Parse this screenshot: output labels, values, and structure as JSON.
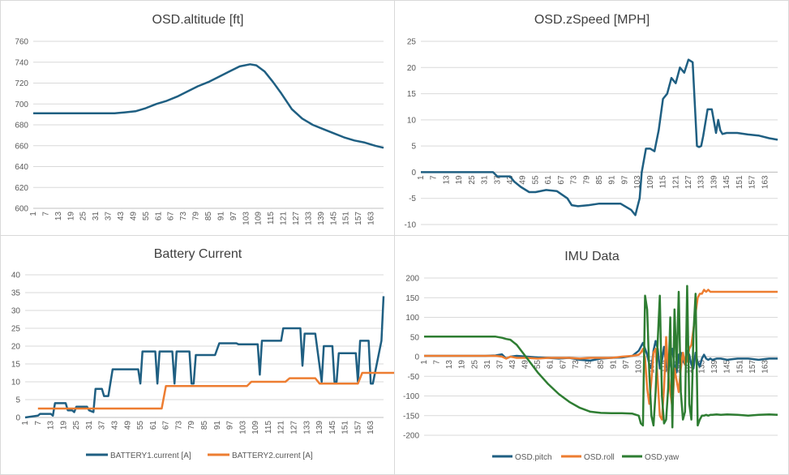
{
  "colors": {
    "blue": "#1f5f82",
    "orange": "#ed7d31",
    "green": "#2e7d32",
    "grid": "#d9d9d9",
    "text": "#595959"
  },
  "x_tick_labels": [
    "1",
    "7",
    "13",
    "19",
    "25",
    "31",
    "37",
    "43",
    "49",
    "55",
    "61",
    "67",
    "73",
    "79",
    "85",
    "91",
    "97",
    "103",
    "109",
    "115",
    "121",
    "127",
    "133",
    "139",
    "145",
    "151",
    "157",
    "163"
  ],
  "chart_data": [
    {
      "id": "altitude",
      "type": "line",
      "title": "OSD.altitude [ft]",
      "ylim": [
        600,
        760
      ],
      "yticks": [
        600,
        620,
        640,
        660,
        680,
        700,
        720,
        740,
        760
      ],
      "x": [
        1,
        10,
        20,
        30,
        40,
        45,
        50,
        55,
        60,
        65,
        70,
        75,
        80,
        85,
        90,
        95,
        100,
        105,
        108,
        112,
        116,
        120,
        125,
        130,
        135,
        140,
        145,
        150,
        155,
        160,
        165,
        169
      ],
      "series": [
        {
          "name": "OSD.altitude [ft]",
          "color": "#1f5f82",
          "values": [
            691,
            691,
            691,
            691,
            691,
            692,
            693,
            696,
            700,
            703,
            707,
            712,
            717,
            721,
            726,
            731,
            736,
            738,
            737,
            731,
            721,
            710,
            695,
            686,
            680,
            676,
            672,
            668,
            665,
            663,
            660,
            658
          ]
        }
      ]
    },
    {
      "id": "zspeed",
      "type": "line",
      "title": "OSD.zSpeed [MPH]",
      "ylim": [
        -10,
        25
      ],
      "yticks": [
        -10,
        -5,
        0,
        5,
        10,
        15,
        20,
        25
      ],
      "x": [
        1,
        10,
        20,
        30,
        35,
        37,
        40,
        43,
        45,
        48,
        52,
        55,
        60,
        65,
        70,
        72,
        75,
        80,
        85,
        90,
        95,
        100,
        102,
        104,
        105,
        107,
        109,
        111,
        113,
        115,
        117,
        119,
        121,
        123,
        125,
        127,
        129,
        131,
        132,
        133,
        134,
        136,
        138,
        140,
        141,
        142,
        143,
        145,
        150,
        155,
        160,
        165,
        169
      ],
      "series": [
        {
          "name": "OSD.zSpeed [MPH]",
          "color": "#1f5f82",
          "values": [
            0,
            0,
            0,
            0,
            0,
            -0.8,
            -0.8,
            -0.8,
            -1.8,
            -2.8,
            -3.8,
            -3.8,
            -3.4,
            -3.6,
            -5,
            -6.3,
            -6.5,
            -6.3,
            -6,
            -6,
            -6,
            -7.2,
            -8.2,
            -5,
            0,
            4.5,
            4.5,
            4,
            8,
            14,
            15,
            18,
            17,
            20,
            19,
            21.5,
            21,
            5,
            4.8,
            5,
            7,
            12,
            12,
            7.5,
            10,
            8,
            7.3,
            7.5,
            7.5,
            7.2,
            7,
            6.5,
            6.2
          ]
        }
      ]
    },
    {
      "id": "battery",
      "type": "line",
      "title": "Battery Current",
      "ylim": [
        0,
        40
      ],
      "yticks": [
        0,
        5,
        10,
        15,
        20,
        25,
        30,
        35,
        40
      ],
      "x": [
        1,
        7,
        8,
        9,
        13,
        14,
        15,
        16,
        20,
        21,
        23,
        24,
        25,
        26,
        30,
        31,
        33,
        34,
        35,
        36,
        37,
        38,
        40,
        42,
        43,
        44,
        46,
        50,
        54,
        55,
        56,
        57,
        60,
        62,
        63,
        64,
        65,
        66,
        70,
        71,
        72,
        73,
        78,
        79,
        80,
        81,
        82,
        83,
        90,
        92,
        100,
        101,
        102,
        103,
        110,
        111,
        112,
        120,
        121,
        122,
        123,
        129,
        130,
        131,
        132,
        133,
        136,
        137,
        140,
        141,
        142,
        143,
        145,
        146,
        147,
        148,
        150,
        152,
        156,
        157,
        158,
        160,
        162,
        163,
        164,
        168,
        169
      ],
      "series": [
        {
          "name": "BATTERY1.current [A]",
          "color": "#1f5f82",
          "values": [
            0,
            0.5,
            1,
            1,
            1,
            0.5,
            4,
            4,
            4,
            2,
            2,
            1.5,
            3,
            3,
            3,
            2,
            1.5,
            8,
            8,
            8,
            8,
            6,
            6,
            13.5,
            13.5,
            13.5,
            13.5,
            13.5,
            13.5,
            9.5,
            18.5,
            18.5,
            18.5,
            18.5,
            9.5,
            18.5,
            18.5,
            18.5,
            18.5,
            9.5,
            18.5,
            18.5,
            18.5,
            9.5,
            9.5,
            17.5,
            17.5,
            17.5,
            17.5,
            20.8,
            20.8,
            20.5,
            20.5,
            20.5,
            20.5,
            12,
            21.5,
            21.5,
            21.5,
            25,
            25,
            25,
            25,
            14.5,
            23.5,
            23.5,
            23.5,
            23.5,
            10,
            20,
            20,
            20,
            20,
            10,
            10,
            18,
            18,
            18,
            18,
            10,
            21.5,
            21.5,
            21.5,
            9.5,
            9.5,
            21.5,
            34
          ]
        },
        {
          "name": "BATTERY2.current [A]",
          "color": "#ed7d31",
          "start": 7,
          "values": [
            2.5,
            2.5,
            2.5,
            2.5,
            2.5,
            2.5,
            2.5,
            2.5,
            2.5,
            2.5,
            2.5,
            2.5,
            2.5,
            2.5,
            2.5,
            2.5,
            2.5,
            2.5,
            2.5,
            2.5,
            2.5,
            2.5,
            2.5,
            2.5,
            2.5,
            2.5,
            2.5,
            2.5,
            2.5,
            2.5,
            8.8,
            8.8,
            8.8,
            8.8,
            8.8,
            8.8,
            8.8,
            8.8,
            8.8,
            8.8,
            8.8,
            8.8,
            8.8,
            8.8,
            8.8,
            8.8,
            8.8,
            8.8,
            8.8,
            8.8,
            10,
            10,
            10,
            10,
            10,
            10,
            10,
            10,
            10,
            11,
            11,
            11,
            11,
            11,
            11,
            11,
            9.5,
            9.5,
            9.5,
            9.5,
            9.5,
            9.5,
            9.5,
            9.5,
            9.5,
            9.5,
            12.5,
            12.5,
            12.5,
            12.5,
            12.5,
            12.5,
            12.5,
            12.5,
            12.5,
            12.5,
            12.5
          ]
        }
      ]
    },
    {
      "id": "imu",
      "type": "line",
      "title": "IMU Data",
      "ylim": [
        -200,
        200
      ],
      "yticks": [
        -200,
        -150,
        -100,
        -50,
        0,
        50,
        100,
        150,
        200
      ],
      "x": [
        1,
        10,
        20,
        30,
        35,
        38,
        40,
        42,
        45,
        50,
        55,
        60,
        65,
        70,
        75,
        80,
        85,
        90,
        95,
        100,
        103,
        104,
        105,
        106,
        107,
        108,
        109,
        110,
        111,
        112,
        113,
        114,
        115,
        116,
        117,
        118,
        119,
        120,
        121,
        122,
        123,
        124,
        125,
        126,
        127,
        128,
        129,
        130,
        131,
        132,
        133,
        134,
        135,
        136,
        137,
        138,
        140,
        142,
        145,
        150,
        155,
        160,
        165,
        169
      ],
      "series": [
        {
          "name": "OSD.pitch",
          "color": "#1f5f82",
          "values": [
            2,
            2,
            2,
            2,
            3,
            6,
            -5,
            0,
            2,
            0,
            -2,
            -3,
            -5,
            -3,
            -8,
            -10,
            -5,
            -3,
            -2,
            2,
            15,
            25,
            35,
            20,
            5,
            -20,
            -30,
            15,
            40,
            20,
            -30,
            -10,
            25,
            -20,
            -40,
            -5,
            20,
            -25,
            -40,
            5,
            10,
            -10,
            -20,
            15,
            5,
            -20,
            -30,
            10,
            -15,
            -25,
            -5,
            5,
            -5,
            -8,
            -5,
            -8,
            -5,
            -5,
            -8,
            -5,
            -5,
            -8,
            -5,
            -5
          ]
        },
        {
          "name": "OSD.roll",
          "color": "#ed7d31",
          "values": [
            2,
            2,
            2,
            2,
            2,
            0,
            -5,
            0,
            -3,
            -3,
            -5,
            -3,
            -3,
            -3,
            -5,
            -3,
            -3,
            -3,
            0,
            2,
            5,
            10,
            20,
            -5,
            -80,
            -120,
            -60,
            10,
            20,
            -60,
            -150,
            -160,
            -80,
            50,
            -40,
            -90,
            -130,
            -30,
            -60,
            -90,
            -30,
            10,
            -20,
            -10,
            20,
            30,
            70,
            110,
            150,
            160,
            160,
            170,
            165,
            170,
            165,
            165,
            165,
            165,
            165,
            165,
            165,
            165,
            165,
            165
          ]
        },
        {
          "name": "OSD.yaw",
          "color": "#2e7d32",
          "values": [
            51,
            51,
            51,
            51,
            51,
            48,
            45,
            43,
            30,
            -5,
            -40,
            -70,
            -95,
            -115,
            -130,
            -140,
            -143,
            -144,
            -144,
            -145,
            -150,
            -170,
            -175,
            155,
            120,
            -40,
            -150,
            -175,
            -90,
            40,
            155,
            -100,
            -170,
            -160,
            -80,
            100,
            -180,
            120,
            -30,
            165,
            -90,
            -160,
            -140,
            180,
            -120,
            -160,
            60,
            160,
            -175,
            -160,
            -150,
            -150,
            -148,
            -150,
            -148,
            -148,
            -147,
            -148,
            -147,
            -148,
            -150,
            -148,
            -147,
            -148
          ]
        }
      ]
    }
  ]
}
